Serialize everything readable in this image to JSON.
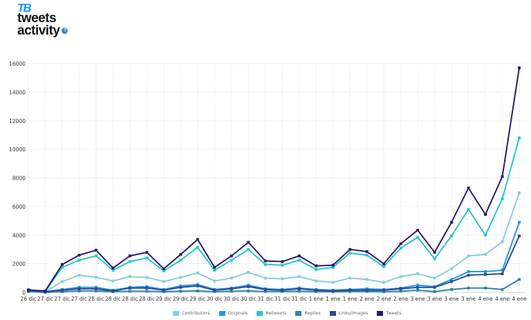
{
  "header": {
    "logo_text": "TB",
    "title_line1": "tweets",
    "title_line2": "activity",
    "help_icon": "question-circle-icon"
  },
  "chart_data": {
    "type": "line",
    "x": [
      "26 dic",
      "27 dic",
      "27 dic",
      "27 dic",
      "28 dic",
      "28 dic",
      "28 dic",
      "28 dic",
      "29 dic",
      "29 dic",
      "29 dic",
      "30 dic",
      "30 dic",
      "30 dic",
      "31 dic",
      "31 dic",
      "31 dic",
      "1 ene",
      "1 ene",
      "1 ene",
      "2 ene",
      "2 ene",
      "2 ene",
      "3 ene",
      "3 ene",
      "3 ene",
      "3 ene",
      "4 ene",
      "4 ene",
      "4 ene"
    ],
    "ylim": [
      0,
      16000
    ],
    "yticks": [
      "0",
      "2000",
      "4000",
      "6000",
      "8000",
      "10000",
      "12000",
      "14000",
      "16000"
    ],
    "grid": true,
    "legend_position": "bottom",
    "series": [
      {
        "name": "Contributors",
        "color": "#86cfd8",
        "values": [
          100,
          50,
          750,
          1200,
          1050,
          800,
          1100,
          1050,
          750,
          1050,
          1350,
          800,
          1000,
          1400,
          1000,
          950,
          1100,
          800,
          700,
          1000,
          900,
          700,
          1100,
          1300,
          1000,
          1650,
          2550,
          2650,
          3550,
          6950
        ]
      },
      {
        "name": "Originals",
        "color": "#2196f3",
        "values": [
          200,
          50,
          200,
          350,
          350,
          150,
          350,
          400,
          200,
          450,
          550,
          200,
          300,
          500,
          250,
          200,
          300,
          200,
          150,
          200,
          250,
          200,
          300,
          500,
          400,
          900,
          1450,
          1450,
          1550,
          4900
        ]
      },
      {
        "name": "Retweets",
        "color": "#26c6cf",
        "values": [
          50,
          50,
          1750,
          2250,
          2550,
          1550,
          2150,
          2400,
          1500,
          2250,
          3150,
          1550,
          2250,
          3000,
          1950,
          1900,
          2250,
          1600,
          1750,
          2750,
          2600,
          1800,
          3100,
          3850,
          2350,
          3950,
          5800,
          4000,
          6550,
          10800
        ]
      },
      {
        "name": "Replies",
        "color": "#2e86ab",
        "values": [
          50,
          0,
          50,
          100,
          100,
          50,
          80,
          80,
          50,
          80,
          100,
          50,
          80,
          100,
          60,
          60,
          80,
          50,
          40,
          60,
          60,
          40,
          80,
          150,
          50,
          200,
          300,
          300,
          200,
          900
        ]
      },
      {
        "name": "Links/Images",
        "color": "#2f4b8f",
        "values": [
          150,
          50,
          150,
          250,
          250,
          100,
          300,
          300,
          150,
          350,
          450,
          150,
          250,
          400,
          200,
          150,
          250,
          150,
          100,
          150,
          150,
          150,
          250,
          350,
          350,
          750,
          1200,
          1250,
          1300,
          3950
        ]
      },
      {
        "name": "Tweets",
        "color": "#2c1a6e",
        "values": [
          150,
          100,
          1950,
          2600,
          2950,
          1700,
          2550,
          2800,
          1650,
          2650,
          3700,
          1750,
          2550,
          3500,
          2200,
          2150,
          2550,
          1850,
          1900,
          3000,
          2850,
          2000,
          3400,
          4350,
          2800,
          4900,
          7300,
          5450,
          8100,
          15700
        ]
      }
    ]
  }
}
